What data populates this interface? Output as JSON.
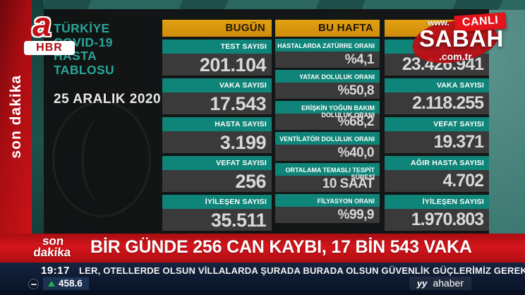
{
  "channel": {
    "logo_letter": "a",
    "logo_text": "HBR",
    "side_label": "son dakika"
  },
  "panel": {
    "title": "TÜRKİYE\nCOVID-19\nHASTA\nTABLOSU",
    "date": "25 ARALIK 2020",
    "columns": [
      {
        "header": "BUGÜN",
        "stats": [
          {
            "label": "TEST SAYISI",
            "value": "201.104"
          },
          {
            "label": "VAKA SAYISI",
            "value": "17.543"
          },
          {
            "label": "HASTA SAYISI",
            "value": "3.199"
          },
          {
            "label": "VEFAT SAYISI",
            "value": "256"
          },
          {
            "label": "İYİLEŞEN SAYISI",
            "value": "35.511"
          }
        ]
      },
      {
        "header": "BU HAFTA",
        "stats": [
          {
            "label": "HASTALARDA ZATÜRRE ORANI",
            "value": "%4,1"
          },
          {
            "label": "YATAK DOLULUK ORANI",
            "value": "%50,8"
          },
          {
            "label": "ERİŞKİN YOĞUN BAKIM DOLULUK ORANI",
            "value": "%68,2"
          },
          {
            "label": "VENTİLATÖR DOLULUK ORANI",
            "value": "%40,0"
          },
          {
            "label": "ORTALAMA TEMASLI TESPİT SÜRESİ",
            "value": "10 SAAT"
          },
          {
            "label": "FİLYASYON ORANI",
            "value": "%99,9"
          }
        ]
      },
      {
        "header": "",
        "stats": [
          {
            "label": "",
            "value": "23.426.941"
          },
          {
            "label": "VAKA SAYISI",
            "value": "2.118.255"
          },
          {
            "label": "VEFAT SAYISI",
            "value": "19.371"
          },
          {
            "label": "AĞIR HASTA SAYISI",
            "value": "4.702"
          },
          {
            "label": "İYİLEŞEN SAYISI",
            "value": "1.970.803"
          }
        ]
      }
    ]
  },
  "watermark": {
    "www": "www.",
    "brand": "SABAH",
    "domain": ".com.tr",
    "live_badge": "CANLI"
  },
  "breaking": {
    "tag": "son\ndakika",
    "headline": "BİR GÜNDE 256 CAN KAYBI, 17 BİN 543 VAKA"
  },
  "ticker_bar": {
    "time": "19:17",
    "ticker_text": "LER, OTELLERDE OLSUN VİLLALARDA ŞURADA BURADA OLSUN GÜVENLİK GÜÇLERİMİZ GEREKLİ TEDBİRİ ALACA",
    "indicator_value": "458.6",
    "station_icon": "yy",
    "station_name": "ahaber"
  },
  "colors": {
    "teal_bar": "#0f8478",
    "orange_header": "#d9940f",
    "banner_red": "#cf1118",
    "accent_teal": "#27a598",
    "indicator_green": "#21b14b"
  }
}
